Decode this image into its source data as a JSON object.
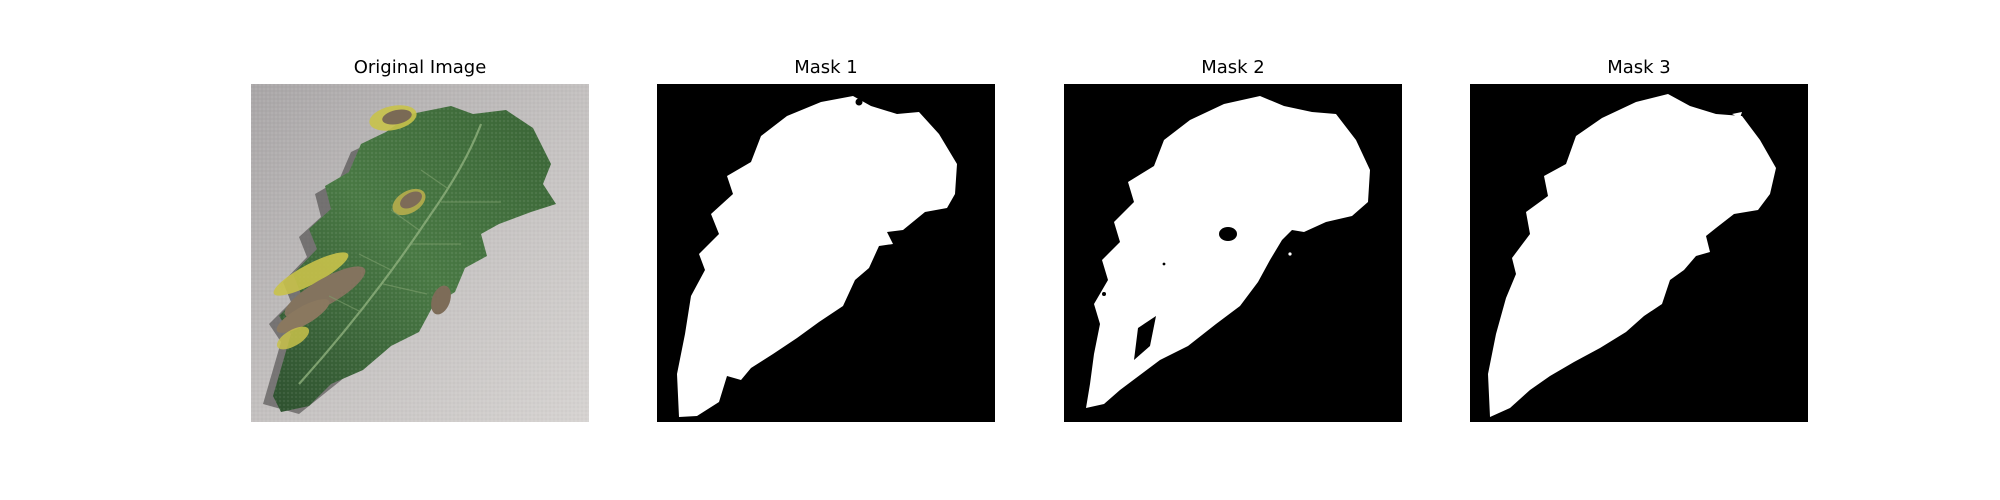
{
  "figure": {
    "panels": [
      {
        "title": "Original Image",
        "kind": "photo",
        "subject": "tomato-leaf"
      },
      {
        "title": "Mask 1",
        "kind": "mask"
      },
      {
        "title": "Mask 2",
        "kind": "mask"
      },
      {
        "title": "Mask 3",
        "kind": "mask"
      }
    ]
  },
  "colors": {
    "background": "#ffffff",
    "mask_background": "#000000",
    "mask_foreground": "#ffffff",
    "leaf_green": "#3e6b3a",
    "leaf_dark": "#2a4a2a",
    "lesion_brown": "#7a6a55",
    "lesion_yellow": "#c8c24a",
    "surface_gray": "#b9b6b6"
  }
}
